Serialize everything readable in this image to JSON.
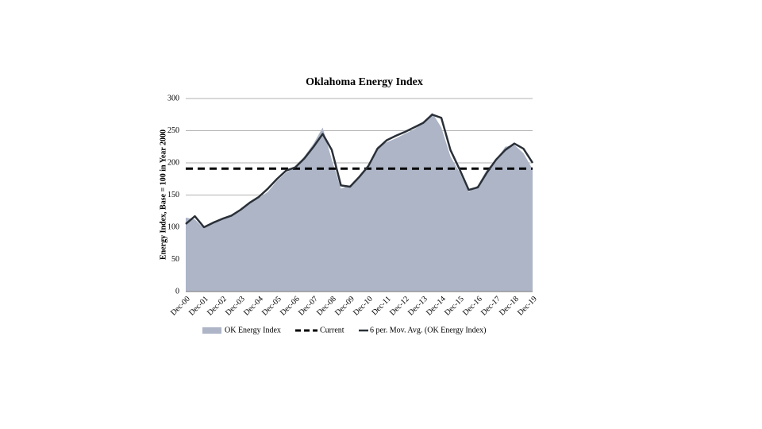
{
  "chart_data": {
    "type": "area",
    "title": "Oklahoma Energy Index",
    "y_label": "Energy Index, Base = 100 in Year 2000",
    "categories": [
      "Dec-00",
      null,
      "Dec-01",
      null,
      "Dec-02",
      null,
      "Dec-03",
      null,
      "Dec-04",
      null,
      "Dec-05",
      null,
      "Dec-06",
      null,
      "Dec-07",
      null,
      "Dec-08",
      null,
      "Dec-09",
      null,
      "Dec-10",
      null,
      "Dec-11",
      null,
      "Dec-12",
      null,
      "Dec-13",
      null,
      "Dec-14",
      null,
      "Dec-15",
      null,
      "Dec-16",
      null,
      "Dec-17",
      null,
      "Dec-18",
      null,
      "Dec-19"
    ],
    "series": [
      {
        "name": "OK Energy Index",
        "color": "#adb5c7",
        "values": [
          115,
          112,
          98,
          108,
          112,
          118,
          125,
          137,
          145,
          155,
          172,
          185,
          193,
          210,
          230,
          255,
          205,
          160,
          165,
          178,
          195,
          225,
          232,
          238,
          245,
          252,
          262,
          278,
          255,
          210,
          185,
          155,
          165,
          190,
          205,
          225,
          228,
          215,
          190
        ]
      },
      {
        "name": "6 per. Mov. Avg. (OK Energy Index)",
        "color": "#2a3038",
        "values": [
          105,
          117,
          100,
          107,
          113,
          118,
          127,
          138,
          147,
          160,
          175,
          188,
          193,
          207,
          225,
          245,
          220,
          165,
          163,
          178,
          195,
          222,
          235,
          242,
          248,
          255,
          262,
          275,
          270,
          220,
          190,
          158,
          162,
          185,
          205,
          220,
          230,
          222,
          200
        ]
      }
    ],
    "reference_line": {
      "name": "Current",
      "value": 191,
      "color": "#000000"
    },
    "ylim": [
      0,
      300
    ],
    "yticks": [
      0,
      50,
      100,
      150,
      200,
      250,
      300
    ],
    "grid": true
  }
}
